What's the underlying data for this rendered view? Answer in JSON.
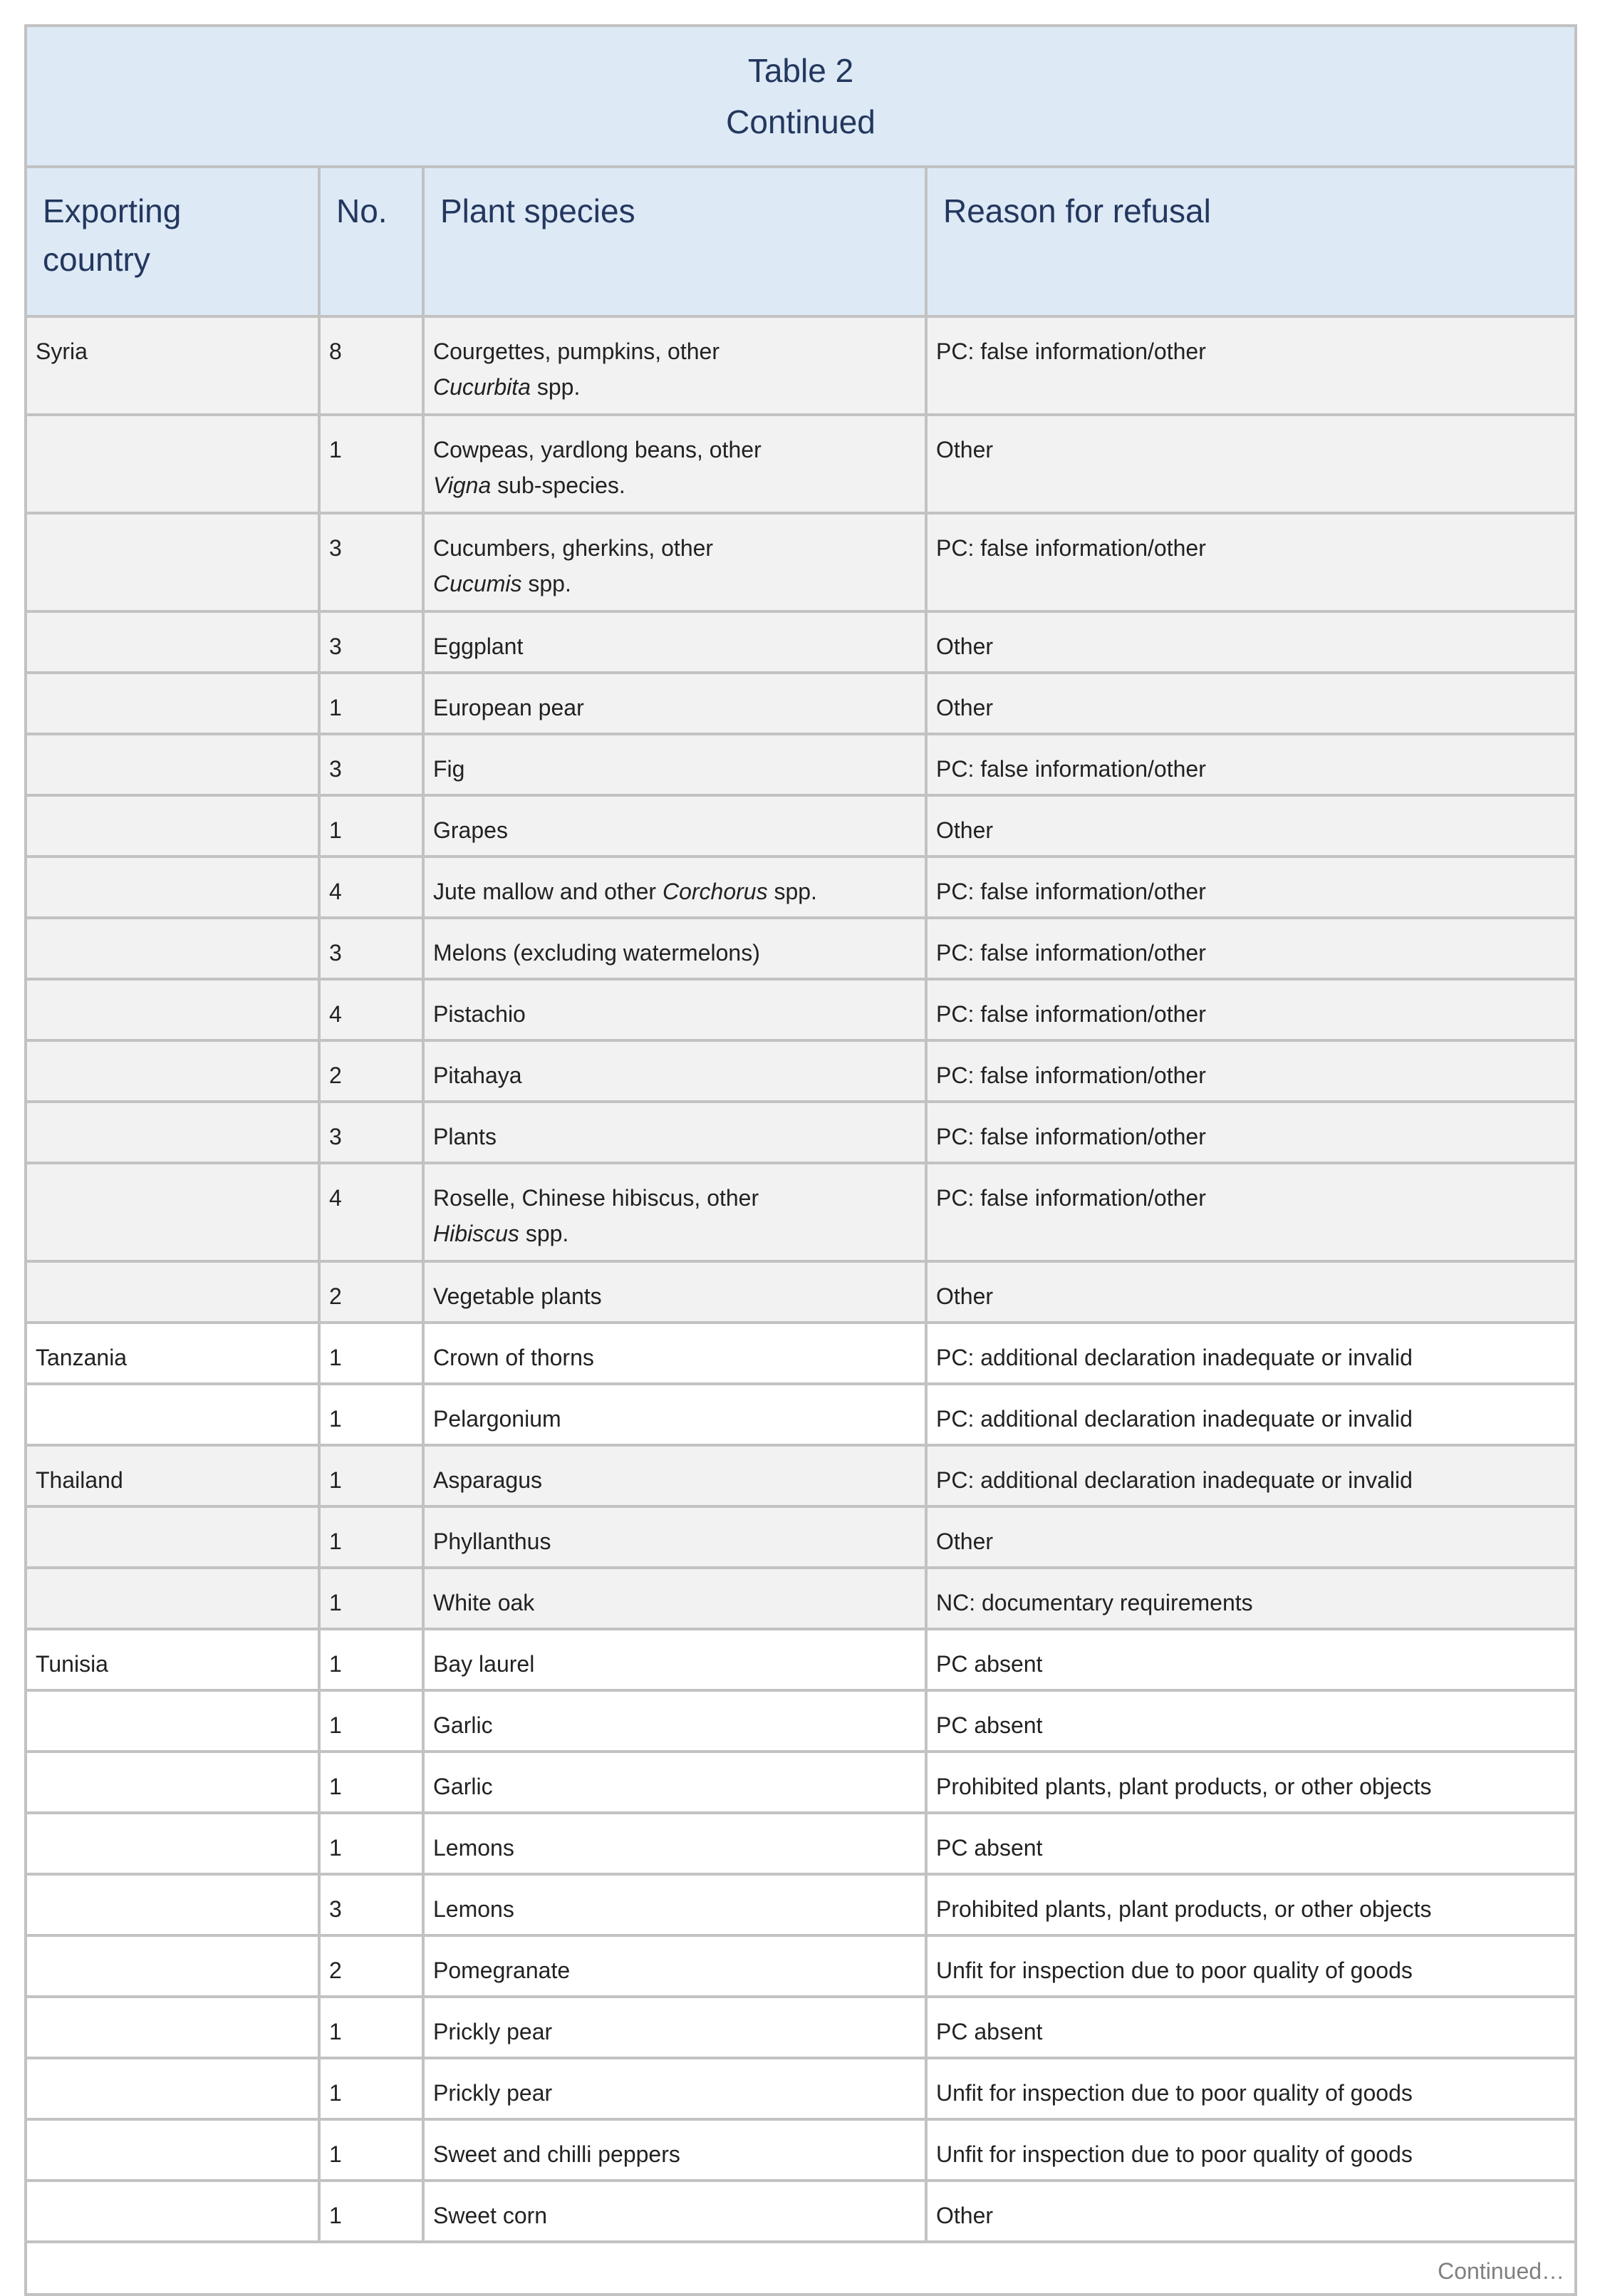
{
  "table": {
    "title": "Table 2",
    "subtitle": "Continued",
    "headers": [
      "Exporting country",
      "No.",
      "Plant species",
      "Reason for refusal"
    ],
    "row_colors": {
      "shaded": "#f2f2f2",
      "plain": "#ffffff",
      "header": "#dde9f5",
      "border": "#c2c2c2"
    },
    "rows": [
      {
        "country": "Syria",
        "no": "8",
        "species": [
          {
            "t": "Courgettes, pumpkins, other"
          },
          {
            "br": true
          },
          {
            "i": "Cucurbita"
          },
          {
            "t": " spp."
          }
        ],
        "reason": "PC: false information/other",
        "shade": "g"
      },
      {
        "country": "",
        "no": "1",
        "species": [
          {
            "t": "Cowpeas, yardlong beans, other"
          },
          {
            "br": true
          },
          {
            "i": "Vigna"
          },
          {
            "t": " sub-species."
          }
        ],
        "reason": "Other",
        "shade": "g"
      },
      {
        "country": "",
        "no": "3",
        "species": [
          {
            "t": "Cucumbers, gherkins, other"
          },
          {
            "br": true
          },
          {
            "i": "Cucumis"
          },
          {
            "t": " spp."
          }
        ],
        "reason": "PC: false information/other",
        "shade": "g"
      },
      {
        "country": "",
        "no": "3",
        "species": [
          {
            "t": "Eggplant"
          }
        ],
        "reason": "Other",
        "shade": "g"
      },
      {
        "country": "",
        "no": "1",
        "species": [
          {
            "t": "European pear"
          }
        ],
        "reason": "Other",
        "shade": "g"
      },
      {
        "country": "",
        "no": "3",
        "species": [
          {
            "t": "Fig"
          }
        ],
        "reason": "PC: false information/other",
        "shade": "g"
      },
      {
        "country": "",
        "no": "1",
        "species": [
          {
            "t": "Grapes"
          }
        ],
        "reason": "Other",
        "shade": "g"
      },
      {
        "country": "",
        "no": "4",
        "species": [
          {
            "t": "Jute mallow and other "
          },
          {
            "i": "Corchorus"
          },
          {
            "t": " spp."
          }
        ],
        "reason": "PC: false information/other",
        "shade": "g"
      },
      {
        "country": "",
        "no": "3",
        "species": [
          {
            "t": "Melons (excluding watermelons)"
          }
        ],
        "reason": "PC: false information/other",
        "shade": "g"
      },
      {
        "country": "",
        "no": "4",
        "species": [
          {
            "t": "Pistachio"
          }
        ],
        "reason": "PC: false information/other",
        "shade": "g"
      },
      {
        "country": "",
        "no": "2",
        "species": [
          {
            "t": "Pitahaya"
          }
        ],
        "reason": "PC: false information/other",
        "shade": "g"
      },
      {
        "country": "",
        "no": "3",
        "species": [
          {
            "t": "Plants"
          }
        ],
        "reason": "PC: false information/other",
        "shade": "g"
      },
      {
        "country": "",
        "no": "4",
        "species": [
          {
            "t": "Roselle, Chinese hibiscus, other"
          },
          {
            "br": true
          },
          {
            "i": "Hibiscus"
          },
          {
            "t": " spp."
          }
        ],
        "reason": "PC: false information/other",
        "shade": "g"
      },
      {
        "country": "",
        "no": "2",
        "species": [
          {
            "t": "Vegetable plants"
          }
        ],
        "reason": "Other",
        "shade": "g"
      },
      {
        "country": "Tanzania",
        "no": "1",
        "species": [
          {
            "t": "Crown of thorns"
          }
        ],
        "reason": "PC: additional declaration inadequate or invalid",
        "shade": "w"
      },
      {
        "country": "",
        "no": "1",
        "species": [
          {
            "t": "Pelargonium"
          }
        ],
        "reason": "PC: additional declaration inadequate or invalid",
        "shade": "w"
      },
      {
        "country": "Thailand",
        "no": "1",
        "species": [
          {
            "t": "Asparagus"
          }
        ],
        "reason": "PC: additional declaration inadequate or invalid",
        "shade": "g"
      },
      {
        "country": "",
        "no": "1",
        "species": [
          {
            "t": "Phyllanthus"
          }
        ],
        "reason": "Other",
        "shade": "g"
      },
      {
        "country": "",
        "no": "1",
        "species": [
          {
            "t": "White oak"
          }
        ],
        "reason": "NC: documentary requirements",
        "shade": "g"
      },
      {
        "country": "Tunisia",
        "no": "1",
        "species": [
          {
            "t": "Bay laurel"
          }
        ],
        "reason": "PC absent",
        "shade": "w"
      },
      {
        "country": "",
        "no": "1",
        "species": [
          {
            "t": "Garlic"
          }
        ],
        "reason": "PC absent",
        "shade": "w"
      },
      {
        "country": "",
        "no": "1",
        "species": [
          {
            "t": "Garlic"
          }
        ],
        "reason": "Prohibited plants, plant products, or other objects",
        "shade": "w"
      },
      {
        "country": "",
        "no": "1",
        "species": [
          {
            "t": "Lemons"
          }
        ],
        "reason": "PC absent",
        "shade": "w"
      },
      {
        "country": "",
        "no": "3",
        "species": [
          {
            "t": "Lemons"
          }
        ],
        "reason": "Prohibited plants, plant products, or other objects",
        "shade": "w"
      },
      {
        "country": "",
        "no": "2",
        "species": [
          {
            "t": "Pomegranate"
          }
        ],
        "reason": "Unfit for inspection due to poor quality of goods",
        "shade": "w"
      },
      {
        "country": "",
        "no": "1",
        "species": [
          {
            "t": "Prickly pear"
          }
        ],
        "reason": "PC absent",
        "shade": "w"
      },
      {
        "country": "",
        "no": "1",
        "species": [
          {
            "t": "Prickly pear"
          }
        ],
        "reason": "Unfit for inspection due to poor quality of goods",
        "shade": "w"
      },
      {
        "country": "",
        "no": "1",
        "species": [
          {
            "t": "Sweet and chilli peppers"
          }
        ],
        "reason": "Unfit for inspection due to poor quality of goods",
        "shade": "w"
      },
      {
        "country": "",
        "no": "1",
        "species": [
          {
            "t": "Sweet corn"
          }
        ],
        "reason": "Other",
        "shade": "w"
      }
    ],
    "footer": "Continued…"
  }
}
